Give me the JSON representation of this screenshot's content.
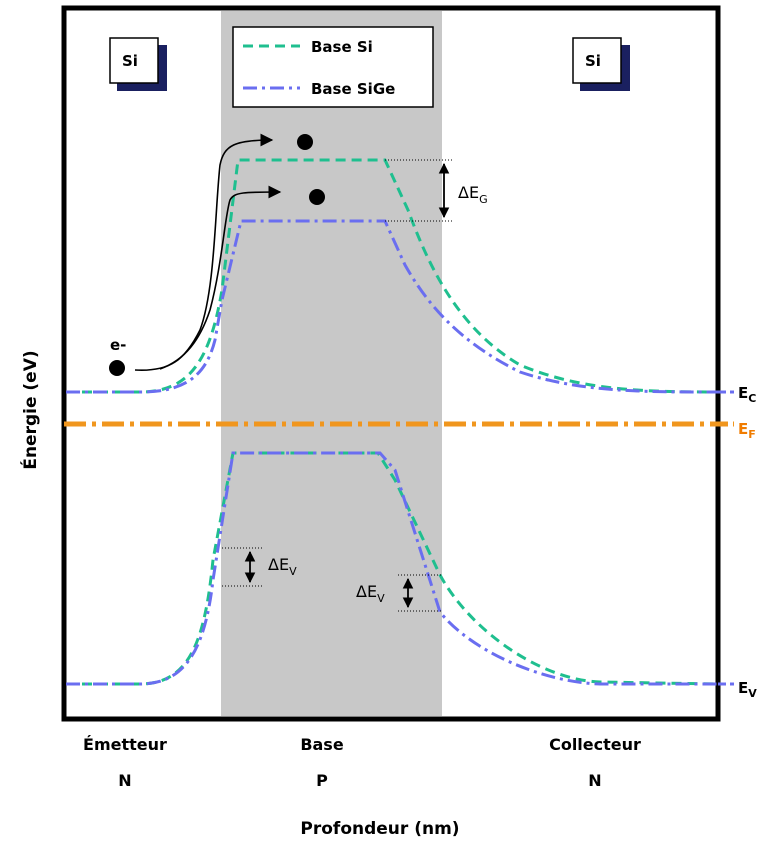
{
  "axes": {
    "xlabel": "Profondeur (nm)",
    "ylabel": "Énergie (eV)"
  },
  "legend": {
    "items": [
      {
        "label": "Base Si",
        "color": "#1fbf8f",
        "dash": "dashed"
      },
      {
        "label": "Base SiGe",
        "color": "#6a6ef0",
        "dash": "dash-dot"
      }
    ]
  },
  "material_boxes": {
    "left": "Si",
    "right": "Si"
  },
  "regions": {
    "emitter": {
      "name": "Émetteur",
      "type": "N"
    },
    "base": {
      "name": "Base",
      "type": "P"
    },
    "collector": {
      "name": "Collecteur",
      "type": "N"
    }
  },
  "levels": {
    "ec_main": "E",
    "ec_sub": "C",
    "ef_main": "E",
    "ef_sub": "F",
    "ev_main": "E",
    "ev_sub": "V"
  },
  "annotations": {
    "electron": "e-",
    "delta_g_main": "ΔE",
    "delta_g_sub": "G",
    "delta_v1_main": "ΔE",
    "delta_v1_sub": "V",
    "delta_v2_main": "ΔE",
    "delta_v2_sub": "V"
  },
  "colors": {
    "frame": "#000000",
    "base_region": "#c8c8c8",
    "fermi": "#f0961e",
    "fermi_label": "#f07c00",
    "box_shadow": "#1a2060",
    "si_line": "#1fbf8f",
    "sige_line": "#6a6ef0"
  }
}
